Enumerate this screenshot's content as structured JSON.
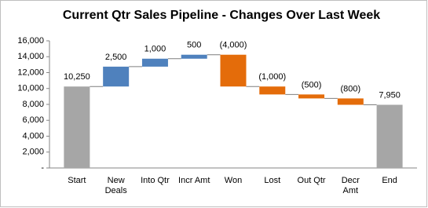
{
  "chart_data": {
    "type": "waterfall",
    "title": "Current Qtr Sales Pipeline - Changes Over Last Week",
    "categories": [
      "Start",
      "New Deals",
      "Into Qtr",
      "Incr Amt",
      "Won",
      "Lost",
      "Out Qtr",
      "Decr Amt",
      "End"
    ],
    "values": [
      10250,
      2500,
      1000,
      500,
      -4000,
      -1000,
      -500,
      -800,
      7950
    ],
    "value_labels": [
      "10,250",
      "2,500",
      "1,000",
      "500",
      "(4,000)",
      "(1,000)",
      "(500)",
      "(800)",
      "7,950"
    ],
    "totals": [
      0,
      8
    ],
    "colors": {
      "total": "#a6a6a6",
      "increase": "#4f81bd",
      "decrease": "#e46c0a"
    },
    "ylim": [
      0,
      16000
    ],
    "yticks": [
      {
        "value": 0,
        "label": "-"
      },
      {
        "value": 2000,
        "label": "2,000"
      },
      {
        "value": 4000,
        "label": "4,000"
      },
      {
        "value": 6000,
        "label": "6,000"
      },
      {
        "value": 8000,
        "label": "8,000"
      },
      {
        "value": 10000,
        "label": "10,000"
      },
      {
        "value": 12000,
        "label": "12,000"
      },
      {
        "value": 14000,
        "label": "14,000"
      },
      {
        "value": 16000,
        "label": "16,000"
      }
    ],
    "grid": false
  }
}
